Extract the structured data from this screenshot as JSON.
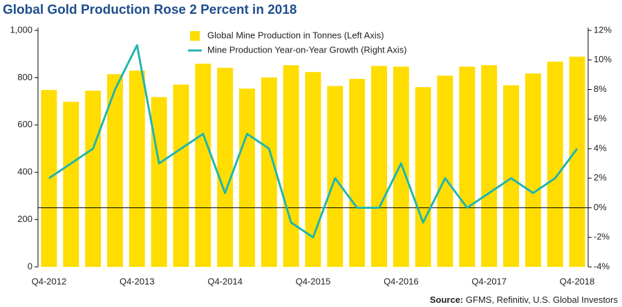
{
  "chart_data": {
    "type": "bar-line",
    "title": "Global Gold Production Rose 2 Percent in 2018",
    "source_label": "Source:",
    "source": "GFMS, Refinitiv, U.S. Global Investors",
    "categories": [
      "Q4-2012",
      null,
      null,
      null,
      "Q4-2013",
      null,
      null,
      null,
      "Q4-2014",
      null,
      null,
      null,
      "Q4-2015",
      null,
      null,
      null,
      "Q4-2016",
      null,
      null,
      null,
      "Q4-2017",
      null,
      null,
      null,
      "Q4-2018"
    ],
    "series": [
      {
        "name": "Global Mine Production in Tonnes (Left Axis)",
        "type": "bar",
        "color": "#ffdd00",
        "axis": "y",
        "values": [
          748,
          698,
          745,
          815,
          830,
          718,
          771,
          859,
          842,
          754,
          801,
          853,
          824,
          765,
          795,
          850,
          847,
          760,
          809,
          847,
          853,
          768,
          818,
          868,
          889
        ]
      },
      {
        "name": "Mine Production Year-on-Year Growth (Right Axis)",
        "type": "line",
        "color": "#1fb5b0",
        "axis": "y2",
        "values": [
          2,
          3,
          4,
          8,
          11,
          3,
          4,
          5,
          1,
          5,
          4,
          -1,
          -2,
          2,
          0,
          0,
          3,
          -1,
          2,
          0,
          1,
          2,
          1,
          2,
          4
        ]
      }
    ],
    "ylim": [
      0,
      1000
    ],
    "yticks": [
      0,
      200,
      400,
      600,
      800,
      {
        "value": 1000,
        "label": "1,000"
      }
    ],
    "y2lim": [
      -4,
      12
    ],
    "y2ticks": [
      {
        "value": -4,
        "label": "-4%"
      },
      {
        "value": -2,
        "label": "-2%"
      },
      {
        "value": 0,
        "label": "0%"
      },
      {
        "value": 2,
        "label": "2%"
      },
      {
        "value": 4,
        "label": "4%"
      },
      {
        "value": 6,
        "label": "6%"
      },
      {
        "value": 8,
        "label": "8%"
      },
      {
        "value": 10,
        "label": "10%"
      },
      {
        "value": 12,
        "label": "12%"
      }
    ],
    "zero_line_y2": 0,
    "grid": false
  }
}
